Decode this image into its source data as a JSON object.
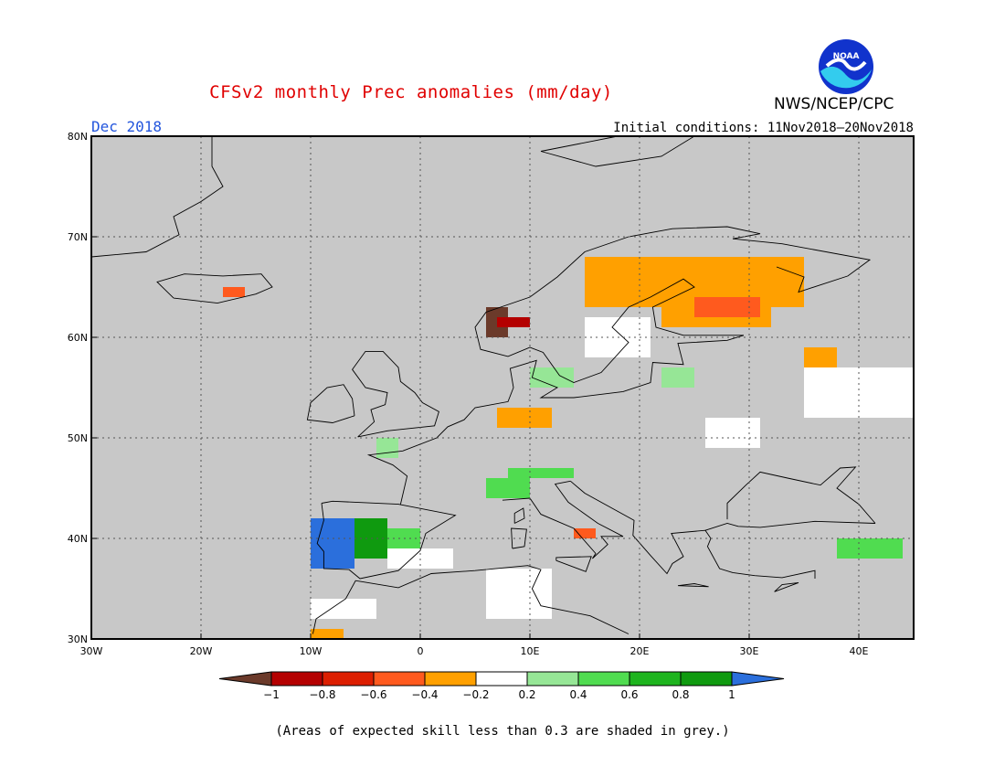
{
  "header": {
    "title": "CFSv2 monthly Prec anomalies (mm/day)",
    "month": "Dec 2018",
    "initial_conditions": "Initial conditions: 11Nov2018–20Nov2018",
    "agency": "NWS/NCEP/CPC",
    "logo_text": "NOAA"
  },
  "map": {
    "lat_labels": [
      "30N",
      "40N",
      "50N",
      "60N",
      "70N",
      "80N"
    ],
    "lon_labels": [
      "30W",
      "20W",
      "10W",
      "0",
      "10E",
      "20E",
      "30E",
      "40E"
    ],
    "extent": {
      "lon_min": -30,
      "lon_max": 45,
      "lat_min": 30,
      "lat_max": 80
    },
    "grid": "dotted",
    "background_no_skill": "#c8c8c8"
  },
  "colorbar": {
    "labels": [
      "−1",
      "−0.8",
      "−0.6",
      "−0.4",
      "−0.2",
      "0.2",
      "0.4",
      "0.6",
      "0.8",
      "1"
    ],
    "colors": [
      "#6b3a2a",
      "#b40000",
      "#dc1e00",
      "#ff5a1e",
      "#ffa000",
      "#ffffff",
      "#96e696",
      "#50dc50",
      "#1eb41e",
      "#0f9a0f",
      "#2b6fdc"
    ]
  },
  "footnote": "(Areas of expected skill less than 0.3 are shaded in grey.)",
  "anomaly_cells": [
    {
      "lon": -4,
      "lat": 48,
      "w": 2,
      "h": 2,
      "class": "0.2-0.4"
    },
    {
      "lon": 8,
      "lat": 46,
      "w": 6,
      "h": 1,
      "class": "0.4-0.6"
    },
    {
      "lon": 6,
      "lat": 44,
      "w": 4,
      "h": 2,
      "class": "0.4-0.6"
    },
    {
      "lon": -10,
      "lat": 37,
      "w": 4,
      "h": 5,
      "class": ">1"
    },
    {
      "lon": -6,
      "lat": 38,
      "w": 3,
      "h": 4,
      "class": "0.8-1"
    },
    {
      "lon": -3,
      "lat": 39,
      "w": 3,
      "h": 2,
      "class": "0.4-0.6"
    },
    {
      "lon": 38,
      "lat": 38,
      "w": 6,
      "h": 2,
      "class": "0.4-0.6"
    },
    {
      "lon": 22,
      "lat": 55,
      "w": 3,
      "h": 2,
      "class": "0.2-0.4"
    },
    {
      "lon": 10,
      "lat": 55,
      "w": 4,
      "h": 2,
      "class": "0.2-0.4"
    },
    {
      "lon": 15,
      "lat": 63,
      "w": 20,
      "h": 5,
      "class": "-0.4--0.2"
    },
    {
      "lon": 22,
      "lat": 61,
      "w": 10,
      "h": 3,
      "class": "-0.4--0.2"
    },
    {
      "lon": 25,
      "lat": 62,
      "w": 6,
      "h": 2,
      "class": "-0.6--0.4"
    },
    {
      "lon": 6,
      "lat": 60,
      "w": 2,
      "h": 3,
      "class": "<-1"
    },
    {
      "lon": 7,
      "lat": 61,
      "w": 3,
      "h": 1,
      "class": "-0.8--0.6"
    },
    {
      "lon": 7,
      "lat": 51,
      "w": 5,
      "h": 2,
      "class": "-0.4--0.2"
    },
    {
      "lon": 14,
      "lat": 40,
      "w": 2,
      "h": 1,
      "class": "-0.6--0.4"
    },
    {
      "lon": 35,
      "lat": 57,
      "w": 3,
      "h": 2,
      "class": "-0.4--0.2"
    },
    {
      "lon": -18,
      "lat": 64,
      "w": 2,
      "h": 1,
      "class": "-0.6--0.4"
    },
    {
      "lon": -10,
      "lat": 30,
      "w": 3,
      "h": 1,
      "class": "-0.4--0.2"
    },
    {
      "lon": 35,
      "lat": 52,
      "w": 10,
      "h": 5,
      "class": "-0.2-0.2"
    },
    {
      "lon": 15,
      "lat": 58,
      "w": 6,
      "h": 4,
      "class": "-0.2-0.2"
    },
    {
      "lon": -3,
      "lat": 37,
      "w": 6,
      "h": 2,
      "class": "-0.2-0.2"
    },
    {
      "lon": 6,
      "lat": 32,
      "w": 6,
      "h": 5,
      "class": "-0.2-0.2"
    },
    {
      "lon": -10,
      "lat": 32,
      "w": 6,
      "h": 2,
      "class": "-0.2-0.2"
    },
    {
      "lon": 26,
      "lat": 49,
      "w": 5,
      "h": 3,
      "class": "-0.2-0.2"
    }
  ]
}
